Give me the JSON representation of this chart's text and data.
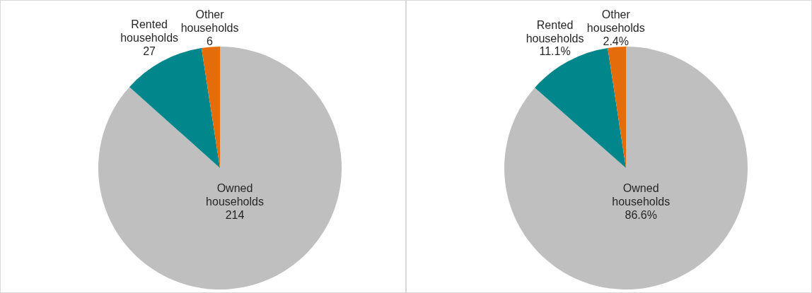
{
  "chart_data": [
    {
      "type": "pie",
      "categories": [
        "Owned households",
        "Rented households",
        "Other households"
      ],
      "values": [
        214,
        27,
        6
      ],
      "colors": [
        "#bfbfbf",
        "#00868b",
        "#e46c0a"
      ],
      "value_labels": [
        "214",
        "27",
        "6"
      ]
    },
    {
      "type": "pie",
      "categories": [
        "Owned households",
        "Rented households",
        "Other households"
      ],
      "values": [
        86.6,
        11.1,
        2.4
      ],
      "colors": [
        "#bfbfbf",
        "#00868b",
        "#e46c0a"
      ],
      "value_labels": [
        "86.6%",
        "11.1%",
        "2.4%"
      ]
    }
  ]
}
